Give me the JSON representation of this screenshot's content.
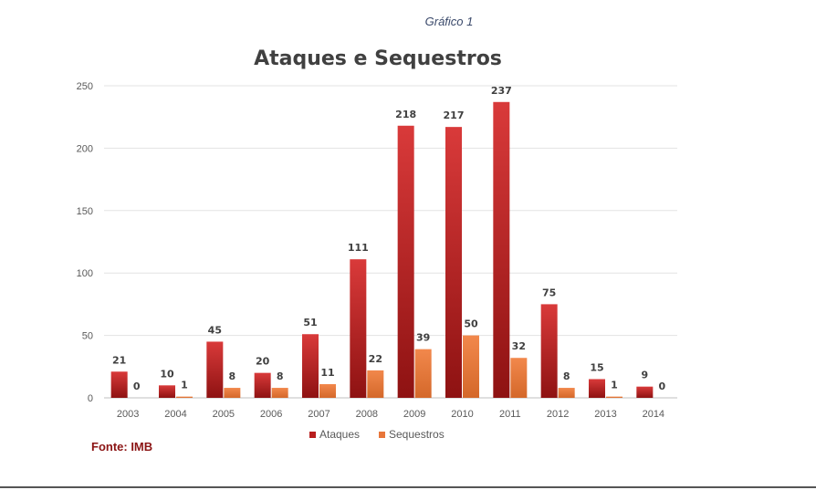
{
  "caption": "Gráfico 1",
  "source": "Fonte: IMB",
  "colors": {
    "attacks": "#b81e1e",
    "kidnappings": "#e8763a",
    "source": "#8b1414",
    "grid": "#e3e3e3"
  },
  "chart_data": {
    "type": "bar",
    "title": "Ataques e Sequestros",
    "xlabel": "",
    "ylabel": "",
    "ylim": [
      0,
      250
    ],
    "yticks": [
      0,
      50,
      100,
      150,
      200,
      250
    ],
    "grid": true,
    "legend": "bottom-center",
    "categories": [
      "2003",
      "2004",
      "2005",
      "2006",
      "2007",
      "2008",
      "2009",
      "2010",
      "2011",
      "2012",
      "2013",
      "2014"
    ],
    "series": [
      {
        "name": "Ataques",
        "values": [
          21,
          10,
          45,
          20,
          51,
          111,
          218,
          217,
          237,
          75,
          15,
          9
        ]
      },
      {
        "name": "Sequestros",
        "values": [
          0,
          1,
          8,
          8,
          11,
          22,
          39,
          50,
          32,
          8,
          1,
          0
        ]
      }
    ]
  }
}
